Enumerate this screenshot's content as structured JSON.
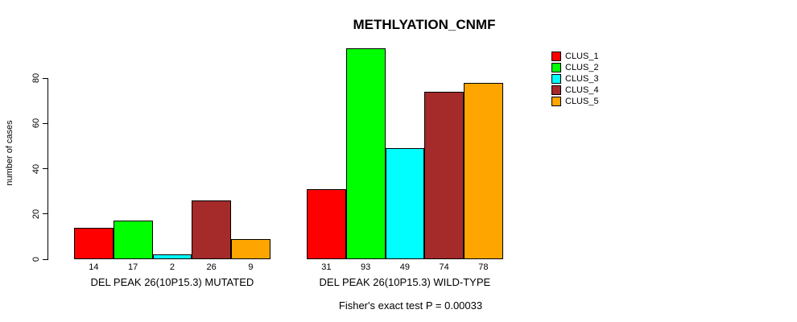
{
  "chart_data": {
    "type": "bar",
    "title": "METHLYATION_CNMF",
    "ylabel": "number of cases",
    "xlabel": "",
    "categories": [
      "DEL PEAK 26(10P15.3) MUTATED",
      "DEL PEAK 26(10P15.3) WILD-TYPE"
    ],
    "series": [
      {
        "name": "CLUS_1",
        "color": "#ff0000",
        "values": [
          14,
          31
        ]
      },
      {
        "name": "CLUS_2",
        "color": "#00ff00",
        "values": [
          17,
          93
        ]
      },
      {
        "name": "CLUS_3",
        "color": "#00ffff",
        "values": [
          2,
          49
        ]
      },
      {
        "name": "CLUS_4",
        "color": "#a52a2a",
        "values": [
          26,
          74
        ]
      },
      {
        "name": "CLUS_5",
        "color": "#ffa500",
        "values": [
          9,
          78
        ]
      }
    ],
    "yticks": [
      0,
      20,
      40,
      60,
      80
    ],
    "ylim": [
      0,
      93
    ],
    "show_values_under_bars": true,
    "grid": false,
    "legend_position": "right-outside",
    "annotation": "Fisher's exact test P = 0.00033"
  }
}
